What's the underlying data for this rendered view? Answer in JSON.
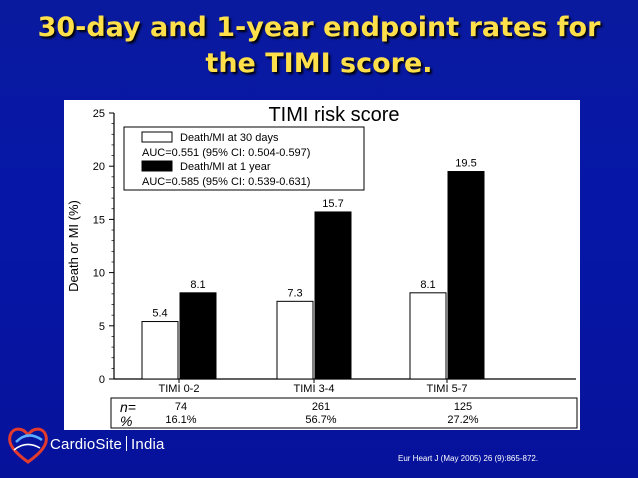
{
  "slide": {
    "title_line1": "30-day and 1-year endpoint rates for",
    "title_line2": "the TIMI score.",
    "citation": "Eur Heart J (May 2005) 26 (9):865-872.",
    "logo_text_left": "CardioSite",
    "logo_text_right": "India",
    "colors": {
      "background": "#0617a8",
      "title": "#ffe04a",
      "bar_30day": "#ffffff",
      "bar_1year": "#000000"
    }
  },
  "chart_data": {
    "type": "bar",
    "title": "TIMI risk score",
    "ylabel": "Death or MI (%)",
    "xlabel": "",
    "ylim": [
      0,
      25
    ],
    "yticks": [
      0,
      5,
      10,
      15,
      20,
      25
    ],
    "categories": [
      "TIMI 0-2",
      "TIMI 3-4",
      "TIMI 5-7"
    ],
    "series": [
      {
        "name": "Death/MI at 30 days",
        "values": [
          5.4,
          7.3,
          8.1
        ],
        "labels": [
          "5.4",
          "7.3",
          "8.1"
        ],
        "color": "#ffffff"
      },
      {
        "name": "Death/MI at 1 year",
        "values": [
          8.1,
          15.7,
          19.5
        ],
        "labels": [
          "8.1",
          "15.7",
          "19.5"
        ],
        "color": "#000000"
      }
    ],
    "legend": {
      "placement": "top-left",
      "entries": [
        {
          "label": "Death/MI at 30 days",
          "auc": "AUC=0.551 (95% CI: 0.504-0.597)"
        },
        {
          "label": "Death/MI at 1 year",
          "auc": "AUC=0.585 (95% CI: 0.539-0.631)"
        }
      ]
    },
    "grid": false,
    "table": {
      "row_labels": [
        "n=",
        "%"
      ],
      "n": [
        "74",
        "261",
        "125"
      ],
      "percent": [
        "16.1%",
        "56.7%",
        "27.2%"
      ]
    }
  }
}
